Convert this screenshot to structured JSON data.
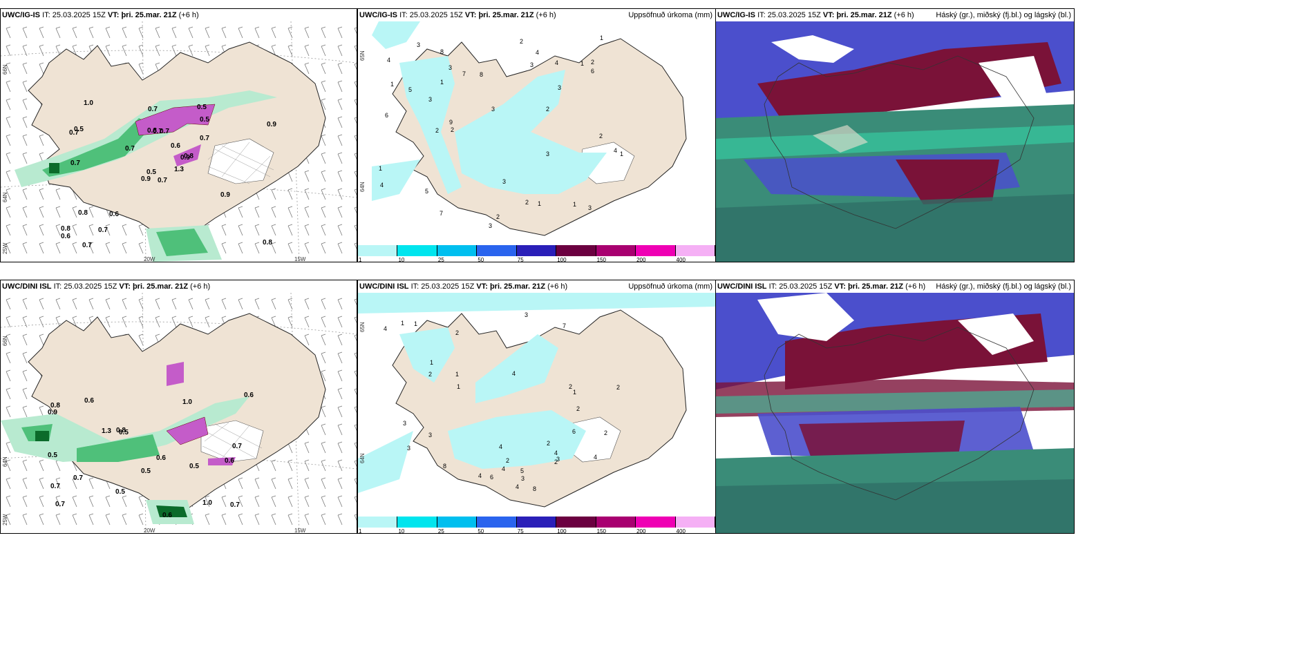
{
  "panels": [
    {
      "model": "UWC/IG-IS",
      "it_label": "IT:",
      "it_value": "25.03.2025 15Z",
      "vt_label": "VT:",
      "vt_value": "þri. 25.mar. 21Z",
      "offset": "(+6 h)",
      "right_title": "",
      "lat_labels": [
        "66N",
        "64N"
      ],
      "lon_labels": [
        "25W",
        "20W",
        "15W"
      ]
    },
    {
      "model": "UWC/IG-IS",
      "it_label": "IT:",
      "it_value": "25.03.2025 15Z",
      "vt_label": "VT:",
      "vt_value": "þri. 25.mar. 21Z",
      "offset": "(+6 h)",
      "right_title": "Uppsöfnuð úrkoma (mm)",
      "lat_labels": [
        "65N",
        "64N"
      ]
    },
    {
      "model": "UWC/IG-IS",
      "it_label": "IT:",
      "it_value": "25.03.2025 15Z",
      "vt_label": "VT:",
      "vt_value": "þri. 25.mar. 21Z",
      "offset": "(+6 h)",
      "right_title": "Háský (gr.), miðský (fj.bl.) og lágský (bl.)"
    },
    {
      "model": "UWC/DINI ISL",
      "it_label": "IT:",
      "it_value": "25.03.2025 15Z",
      "vt_label": "VT:",
      "vt_value": "þri. 25.mar. 21Z",
      "offset": "(+6 h)",
      "right_title": "",
      "lat_labels": [
        "66N",
        "64N"
      ],
      "lon_labels": [
        "25W",
        "20W",
        "15W"
      ]
    },
    {
      "model": "UWC/DINI ISL",
      "it_label": "IT:",
      "it_value": "25.03.2025 15Z",
      "vt_label": "VT:",
      "vt_value": "þri. 25.mar. 21Z",
      "offset": "(+6 h)",
      "right_title": "Uppsöfnuð úrkoma (mm)",
      "lat_labels": [
        "65N",
        "64N"
      ]
    },
    {
      "model": "UWC/DINI ISL",
      "it_label": "IT:",
      "it_value": "25.03.2025 15Z",
      "vt_label": "VT:",
      "vt_value": "þri. 25.mar. 21Z",
      "offset": "(+6 h)",
      "right_title": "Háský (gr.), miðský (fj.bl.) og lágský (bl.)"
    }
  ],
  "colorbar": {
    "ticks": [
      "1",
      "10",
      "25",
      "50",
      "75",
      "100",
      "150",
      "200",
      "400"
    ],
    "colors": [
      "#b9f6f6",
      "#00e5ee",
      "#00bfef",
      "#2a64ee",
      "#2a1fb8",
      "#6b0040",
      "#a80070",
      "#ef00b4",
      "#f5b0f5"
    ]
  },
  "map_colors": {
    "land": "#efe3d4",
    "precip_light": "#b8ead0",
    "precip_mid": "#4fc07a",
    "precip_dark": "#0b6b2a",
    "snow_magenta": "#c45cc9",
    "accum_cyan": "#b9f6f6",
    "cloud_high": "#3a8c78",
    "cloud_mid": "#7a1238",
    "cloud_low": "#4b4fcc"
  },
  "top_left_values": [
    "0.7",
    "0.7",
    "0.5",
    "0.8",
    "0.9",
    "0.6",
    "0.5",
    "0.7",
    "0.5",
    "1.3",
    "1.0",
    "0.8",
    "0.7",
    "0.9",
    "0.9",
    "0.7",
    "0.7",
    "0.8",
    "0.6",
    "0.8",
    "0.7",
    "0.6",
    "0.7",
    "0.7",
    "0.8",
    "0.9",
    "0.5",
    "0.7"
  ],
  "bottom_left_values": [
    "0.5",
    "0.6",
    "0.7",
    "0.6",
    "0.5",
    "1.0",
    "0.7",
    "1.0",
    "1.3",
    "0.6",
    "0.9",
    "0.5",
    "0.8",
    "0.7",
    "0.5",
    "0.7",
    "0.5",
    "0.6",
    "0.8",
    "0.7",
    "0.6"
  ],
  "top_mid_values": [
    "1",
    "1",
    "2",
    "2",
    "1",
    "3",
    "3",
    "2",
    "2",
    "1",
    "4",
    "3",
    "3",
    "5",
    "6",
    "7",
    "9",
    "8",
    "3",
    "2",
    "1",
    "2",
    "3",
    "3",
    "4",
    "3",
    "6",
    "4",
    "3",
    "2",
    "1",
    "1",
    "1",
    "5",
    "4",
    "8",
    "7",
    "3",
    "2",
    "4"
  ],
  "bottom_mid_values": [
    "4",
    "2",
    "4",
    "4",
    "2",
    "3",
    "4",
    "3",
    "2",
    "1",
    "3",
    "4",
    "6",
    "8",
    "7",
    "3",
    "4",
    "3",
    "2",
    "1",
    "1",
    "2",
    "2",
    "1",
    "5",
    "8",
    "3",
    "4",
    "2",
    "1",
    "1",
    "2",
    "6",
    "4",
    "2"
  ]
}
